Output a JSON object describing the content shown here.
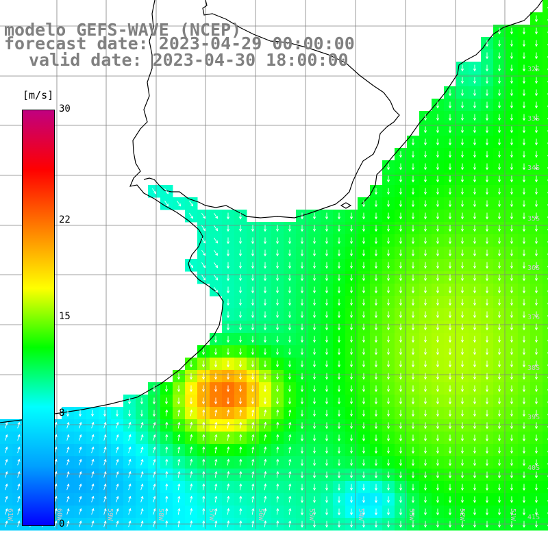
{
  "title": {
    "line1": "modelo GEFS-WAVE (NCEP)",
    "line2": "forecast date: 2023-04-29 00:00:00",
    "line3": "valid date: 2023-04-30 18:00:00"
  },
  "colorbar": {
    "unit": "[m/s]",
    "ticks": [
      "30",
      "22",
      "15",
      "8",
      "0"
    ],
    "tick_values": [
      30,
      22,
      15,
      8,
      0
    ],
    "min": 0,
    "max": 30,
    "colors": [
      "#0000ff",
      "#00a0ff",
      "#00ffff",
      "#00ff00",
      "#ffff00",
      "#ff8000",
      "#ff0000",
      "#c00080"
    ]
  },
  "map": {
    "land_color": "#ffffff",
    "coast_color": "#000000",
    "grid_color": "#808080",
    "vector_color": "#ffffff",
    "lat_labels": [
      "32S",
      "33S",
      "34S",
      "35S",
      "36S",
      "37S",
      "38S",
      "39S",
      "40S",
      "41S"
    ],
    "lon_labels": [
      "61W",
      "60W",
      "59W",
      "58W",
      "57W",
      "56W",
      "55W",
      "54W",
      "53W",
      "52W",
      "51W"
    ]
  }
}
